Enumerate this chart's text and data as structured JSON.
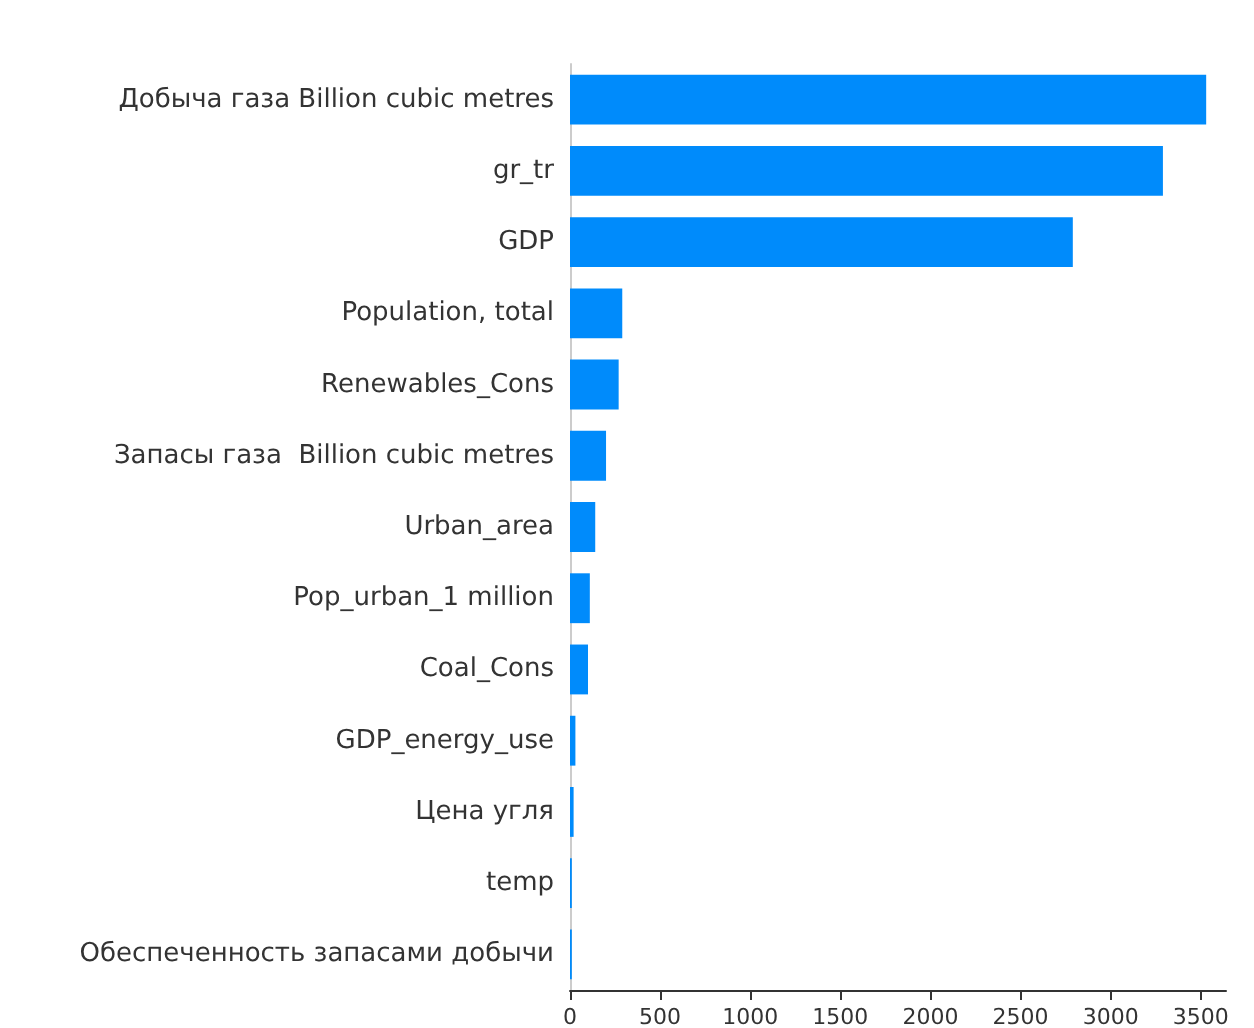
{
  "chart_data": {
    "type": "bar",
    "orientation": "horizontal",
    "categories": [
      "Добыча газа Billion cubic metres",
      "gr_tr",
      "GDP",
      "Population, total",
      "Renewables_Cons",
      "Запасы газа  Billion cubic metres",
      "Urban_area",
      "Pop_urban_1 million",
      "Coal_Cons",
      "GDP_energy_use",
      "Цена угля",
      "temp",
      "Обеспеченность запасами добычи"
    ],
    "values": [
      3530,
      3290,
      2790,
      290,
      270,
      200,
      140,
      110,
      100,
      30,
      20,
      10,
      10
    ],
    "color": "#008bfb",
    "xlim": [
      0,
      3640
    ],
    "xticks": [
      0,
      500,
      1000,
      1500,
      2000,
      2500,
      3000,
      3500
    ],
    "grid": false
  }
}
